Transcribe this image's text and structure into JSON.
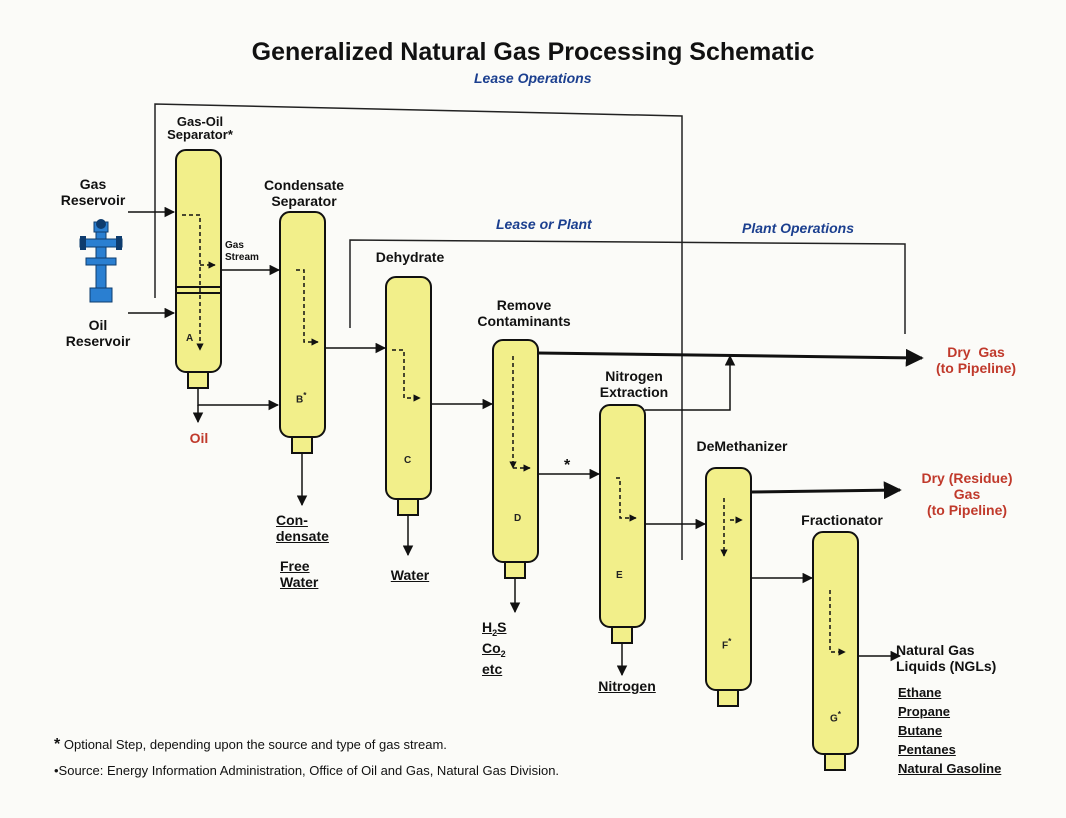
{
  "title": "Generalized Natural Gas Processing Schematic",
  "sections": {
    "lease": "Lease Operations",
    "lease_or_plant": "Lease or Plant",
    "plant": "Plant Operations"
  },
  "sources": {
    "gas": [
      "Gas",
      "Reservoir"
    ],
    "oil": [
      "Oil",
      "Reservoir"
    ]
  },
  "units": {
    "gas_oil": {
      "name": [
        "Gas-Oil",
        "Separator"
      ],
      "star": "*",
      "letter": "A"
    },
    "condensate": {
      "name": [
        "Condensate",
        "Separator"
      ],
      "letter": "B",
      "star": "*"
    },
    "dehydrate": {
      "name": "Dehydrate",
      "letter": "C"
    },
    "contaminants": {
      "name": [
        "Remove",
        "Contaminants"
      ],
      "letter": "D"
    },
    "nitrogen": {
      "name": [
        "Nitrogen",
        "Extraction"
      ],
      "letter": "E"
    },
    "demethanizer": {
      "name": "DeMethanizer",
      "letter": "F",
      "star": "*"
    },
    "fractionator": {
      "name": "Fractionator",
      "letter": "G",
      "star": "*"
    }
  },
  "streams": {
    "gas_stream": [
      "Gas",
      "Stream"
    ],
    "nitrogen_star": "*"
  },
  "outputs": {
    "oil": "Oil",
    "condensate": [
      "Con-",
      "densate"
    ],
    "free_water": [
      "Free",
      "Water"
    ],
    "water": "Water",
    "h2s": "H",
    "h2s_sub": "2",
    "h2s_tail": "S",
    "co2": "Co",
    "co2_sub": "2",
    "etc": "etc",
    "nitrogen": "Nitrogen",
    "dry_gas": [
      "Dry  Gas",
      "(to Pipeline)"
    ],
    "residue_gas": [
      "Dry (Residue)",
      "Gas",
      "(to Pipeline)"
    ],
    "ngl_title": [
      "Natural Gas",
      "Liquids (NGLs)"
    ],
    "ngl_items": [
      "Ethane",
      "Propane",
      "Butane",
      "Pentanes",
      "Natural Gasoline"
    ]
  },
  "footnotes": {
    "star_mark": "*",
    "optional": "Optional Step, depending upon the source and type of gas stream.",
    "source": "•Source: Energy Information Administration, Office of Oil and Gas, Natural Gas Division."
  },
  "colors": {
    "vessel_fill": "#f2ef8a",
    "vessel_stroke": "#111111",
    "section_text": "#1b3f8f",
    "product_text": "#c0392b",
    "wellhead": "#2a7fd1"
  }
}
